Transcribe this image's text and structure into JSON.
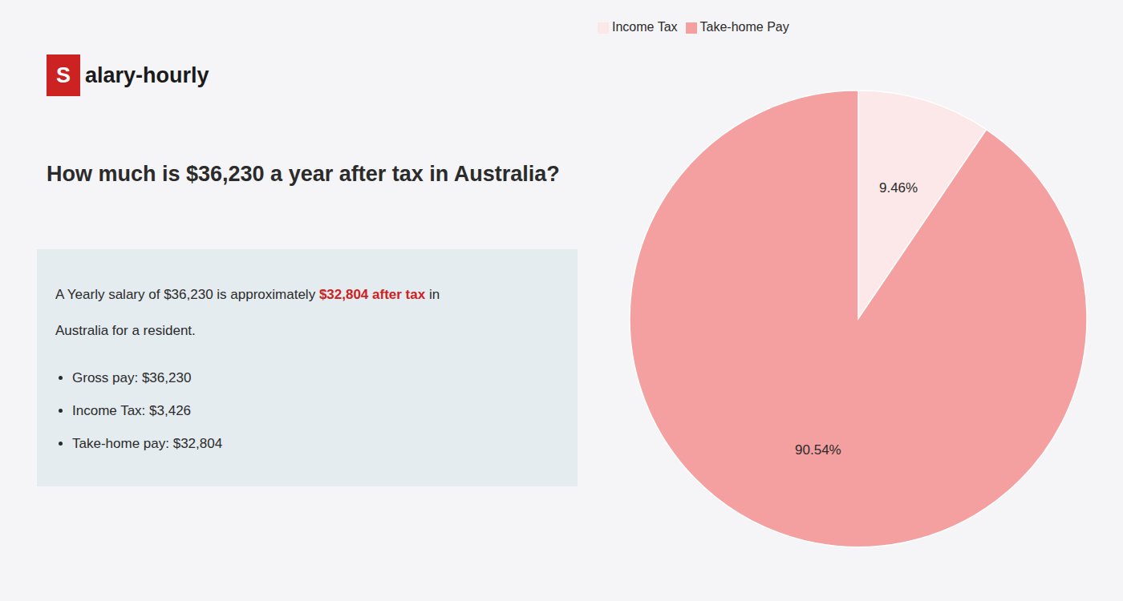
{
  "chart_data": {
    "type": "pie",
    "title": "How much is $36,230 a year after tax in Australia?",
    "annotations": [
      "S",
      "alary-hourly",
      "A Yearly salary of $36,230 is approximately ",
      "$32,804 after tax",
      " in",
      "Australia for a resident.",
      "Gross pay: $36,230",
      "Income Tax: $3,426",
      "Take-home pay: $32,804"
    ],
    "categories": [
      "Income Tax",
      "Take-home Pay"
    ],
    "values": [
      9.46,
      90.54
    ],
    "value_labels": [
      "9.46%",
      "90.54%"
    ],
    "colors": [
      "#fce8e8",
      "#f4a0a0"
    ],
    "data_labels": true,
    "legend": "upper left"
  }
}
